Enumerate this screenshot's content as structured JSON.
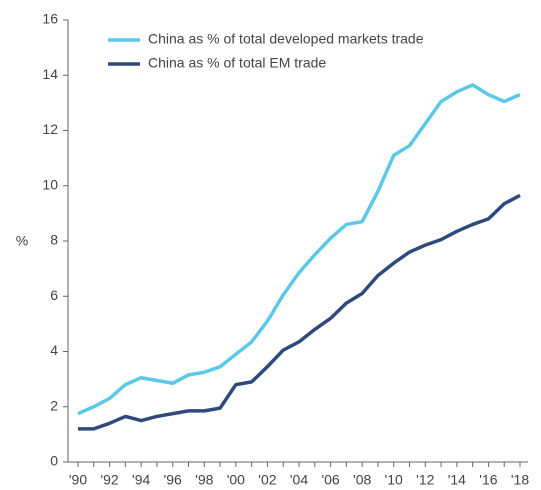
{
  "chart_data": {
    "type": "line",
    "y_label": "%",
    "categories": [
      "'90",
      null,
      "'92",
      null,
      "'94",
      null,
      "'96",
      null,
      "'98",
      null,
      "'00",
      null,
      "'02",
      null,
      "'04",
      null,
      "'06",
      null,
      "'08",
      null,
      "'10",
      null,
      "'12",
      null,
      "'14",
      null,
      "'16",
      null,
      "'18"
    ],
    "series": [
      {
        "name": "China as % of total developed markets trade",
        "color": "#5bc8e8",
        "values": [
          1.75,
          2.0,
          2.3,
          2.8,
          3.05,
          2.95,
          2.85,
          3.15,
          3.25,
          3.45,
          3.9,
          4.35,
          5.1,
          6.05,
          6.85,
          7.5,
          8.1,
          8.6,
          8.7,
          9.8,
          11.1,
          11.45,
          12.25,
          13.05,
          13.4,
          13.65,
          13.3,
          13.05,
          13.3
        ]
      },
      {
        "name": "China as % of total EM trade",
        "color": "#2e4a7a",
        "values": [
          1.2,
          1.2,
          1.4,
          1.65,
          1.5,
          1.65,
          1.75,
          1.85,
          1.85,
          1.95,
          2.8,
          2.9,
          3.45,
          4.05,
          4.35,
          4.8,
          5.2,
          5.75,
          6.1,
          6.75,
          7.2,
          7.6,
          7.85,
          8.05,
          8.35,
          8.6,
          8.8,
          9.35,
          9.65
        ]
      }
    ],
    "ylim": [
      0,
      16
    ],
    "yticks": [
      0,
      2,
      4,
      6,
      8,
      10,
      12,
      14,
      16
    ]
  }
}
